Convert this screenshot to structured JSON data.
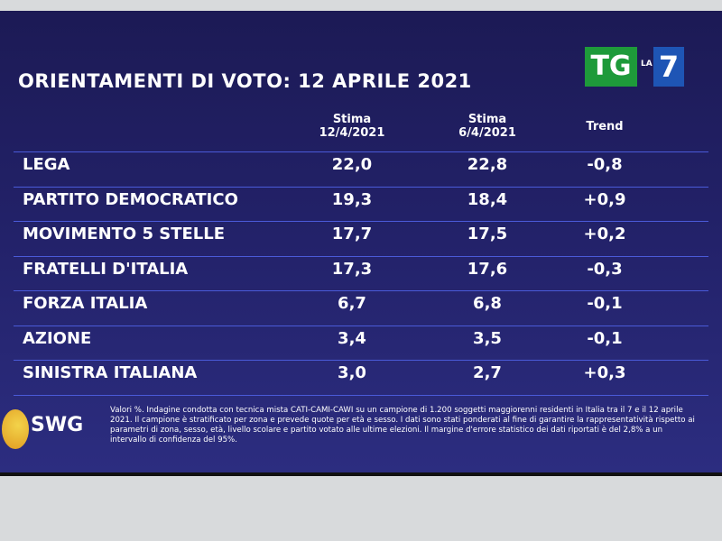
{
  "header": {
    "title": "ORIENTAMENTI DI VOTO: 12 APRILE 2021",
    "logo": {
      "tg": "TG",
      "la": "LA",
      "seven": "7"
    }
  },
  "table": {
    "columns": [
      [
        "Stima",
        "12/4/2021"
      ],
      [
        "Stima",
        "6/4/2021"
      ],
      [
        "Trend"
      ]
    ],
    "rows": [
      [
        "LEGA",
        "22,0",
        "22,8",
        "-0,8"
      ],
      [
        "PARTITO DEMOCRATICO",
        "19,3",
        "18,4",
        "+0,9"
      ],
      [
        "MOVIMENTO 5 STELLE",
        "17,7",
        "17,5",
        "+0,2"
      ],
      [
        "FRATELLI D'ITALIA",
        "17,3",
        "17,6",
        "-0,3"
      ],
      [
        "FORZA ITALIA",
        "6,7",
        "6,8",
        "-0,1"
      ],
      [
        "AZIONE",
        "3,4",
        "3,5",
        "-0,1"
      ],
      [
        "SINISTRA ITALIANA",
        "3,0",
        "2,7",
        "+0,3"
      ]
    ]
  },
  "footer": {
    "brand": "SWG",
    "note": "Valori %. Indagine condotta con tecnica mista CATI-CAMI-CAWI su un campione di 1.200 soggetti maggiorenni residenti in Italia tra il 7 e il 12 aprile 2021. Il campione è stratificato per zona e prevede quote per età e sesso. I dati sono stati ponderati al fine di garantire la rappresentatività rispetto ai parametri di zona, sesso, età, livello scolare e partito votato alle ultime elezioni. Il margine d'errore statistico dei dati riportati è del 2,8% a un intervallo di confidenza del 95%."
  }
}
